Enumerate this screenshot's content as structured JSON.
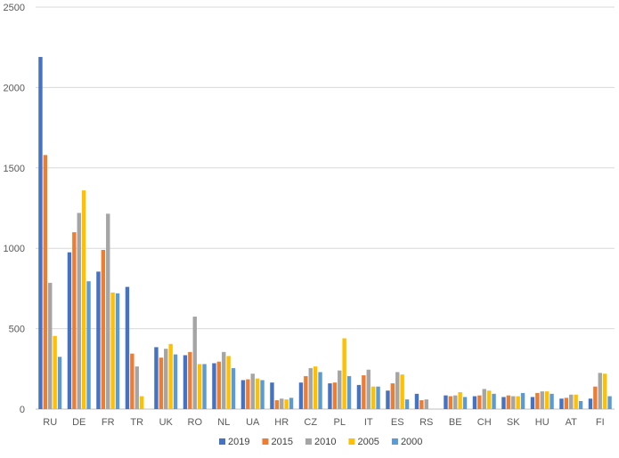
{
  "chart_data": {
    "type": "bar",
    "categories": [
      "RU",
      "DE",
      "FR",
      "TR",
      "UK",
      "RO",
      "NL",
      "UA",
      "HR",
      "CZ",
      "PL",
      "IT",
      "ES",
      "RS",
      "BE",
      "CH",
      "SK",
      "HU",
      "AT",
      "FI"
    ],
    "series": [
      {
        "name": "2019",
        "color": "#4472C4",
        "values": [
          2190,
          975,
          855,
          760,
          385,
          335,
          285,
          180,
          165,
          165,
          160,
          150,
          115,
          95,
          85,
          80,
          75,
          75,
          65,
          65
        ]
      },
      {
        "name": "2015",
        "color": "#ED7D31",
        "values": [
          1580,
          1100,
          990,
          345,
          320,
          355,
          295,
          185,
          55,
          205,
          165,
          210,
          160,
          55,
          80,
          85,
          85,
          100,
          70,
          140
        ]
      },
      {
        "name": "2010",
        "color": "#A5A5A5",
        "values": [
          785,
          1220,
          1215,
          265,
          375,
          575,
          355,
          220,
          65,
          255,
          240,
          245,
          230,
          60,
          85,
          125,
          80,
          110,
          90,
          225
        ]
      },
      {
        "name": "2005",
        "color": "#FFC000",
        "values": [
          455,
          1360,
          725,
          80,
          405,
          280,
          330,
          190,
          60,
          265,
          440,
          140,
          215,
          null,
          105,
          115,
          80,
          110,
          90,
          220
        ]
      },
      {
        "name": "2000",
        "color": "#5B9BD5",
        "values": [
          325,
          795,
          720,
          null,
          340,
          280,
          255,
          180,
          70,
          230,
          205,
          140,
          60,
          null,
          75,
          95,
          100,
          95,
          50,
          80
        ]
      }
    ],
    "yticks": [
      0,
      500,
      1000,
      1500,
      2000,
      2500
    ],
    "ylim": [
      0,
      2500
    ],
    "title": "",
    "xlabel": "",
    "ylabel": "",
    "grid": true,
    "legend_position": "bottom"
  }
}
